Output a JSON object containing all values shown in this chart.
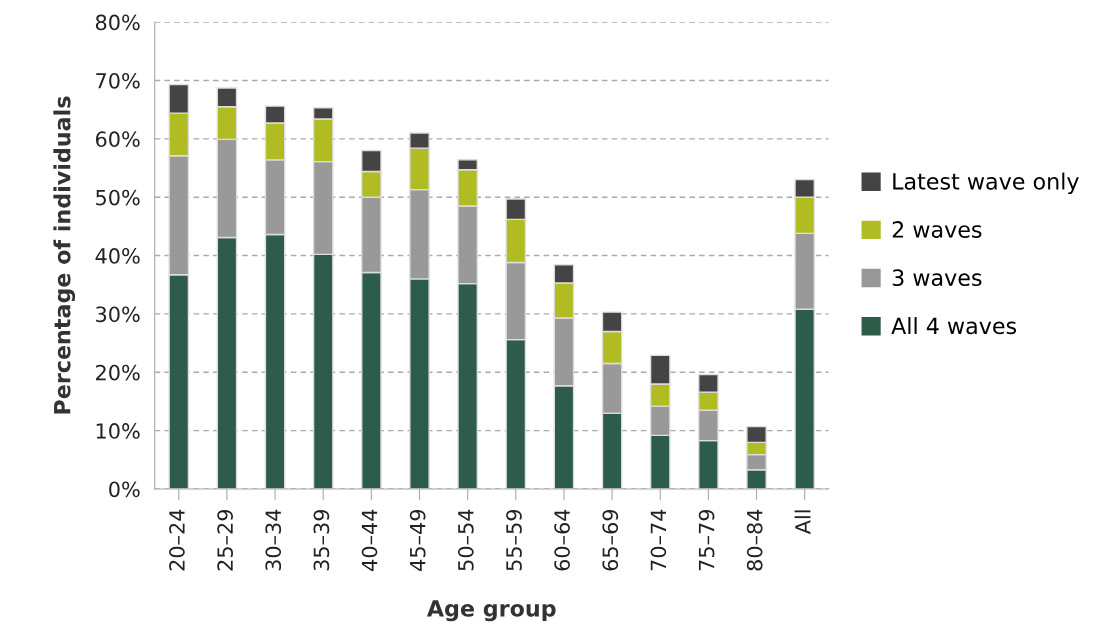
{
  "chart_data": {
    "type": "bar",
    "stacked": true,
    "xlabel": "Age group",
    "ylabel": "Percentage of individuals",
    "categories": [
      "20–24",
      "25–29",
      "30–34",
      "35–39",
      "40–44",
      "45–49",
      "50–54",
      "55–59",
      "60–64",
      "65–69",
      "70–74",
      "75–79",
      "80–84",
      "All"
    ],
    "series": [
      {
        "name": "All 4 waves",
        "color": "#2d5c4a",
        "values": [
          36.7,
          43.1,
          43.6,
          40.2,
          37.1,
          36.0,
          35.2,
          25.6,
          17.7,
          13.0,
          9.2,
          8.3,
          3.3,
          30.8
        ]
      },
      {
        "name": "3 waves",
        "color": "#999999",
        "values": [
          20.4,
          16.8,
          12.8,
          15.9,
          12.9,
          15.3,
          13.3,
          13.2,
          11.6,
          8.5,
          5.0,
          5.2,
          2.6,
          13.0
        ]
      },
      {
        "name": "2 waves",
        "color": "#b0bc22",
        "values": [
          7.3,
          5.6,
          6.3,
          7.3,
          4.4,
          7.1,
          6.2,
          7.4,
          6.0,
          5.5,
          3.8,
          3.1,
          2.1,
          6.2
        ]
      },
      {
        "name": "Latest wave only",
        "color": "#444444",
        "values": [
          4.9,
          3.2,
          2.9,
          1.9,
          3.6,
          2.6,
          1.7,
          3.5,
          3.1,
          3.3,
          4.9,
          3.0,
          2.7,
          3.0
        ]
      }
    ],
    "ylim": [
      0,
      80
    ],
    "yticks": [
      {
        "value": 0,
        "label": "0%"
      },
      {
        "value": 10,
        "label": "10%"
      },
      {
        "value": 20,
        "label": "20%"
      },
      {
        "value": 30,
        "label": "30%"
      },
      {
        "value": 40,
        "label": "40%"
      },
      {
        "value": 50,
        "label": "50%"
      },
      {
        "value": 60,
        "label": "60%"
      },
      {
        "value": 70,
        "label": "70%"
      },
      {
        "value": 80,
        "label": "80%"
      }
    ],
    "grid": "y",
    "legend": "right"
  }
}
